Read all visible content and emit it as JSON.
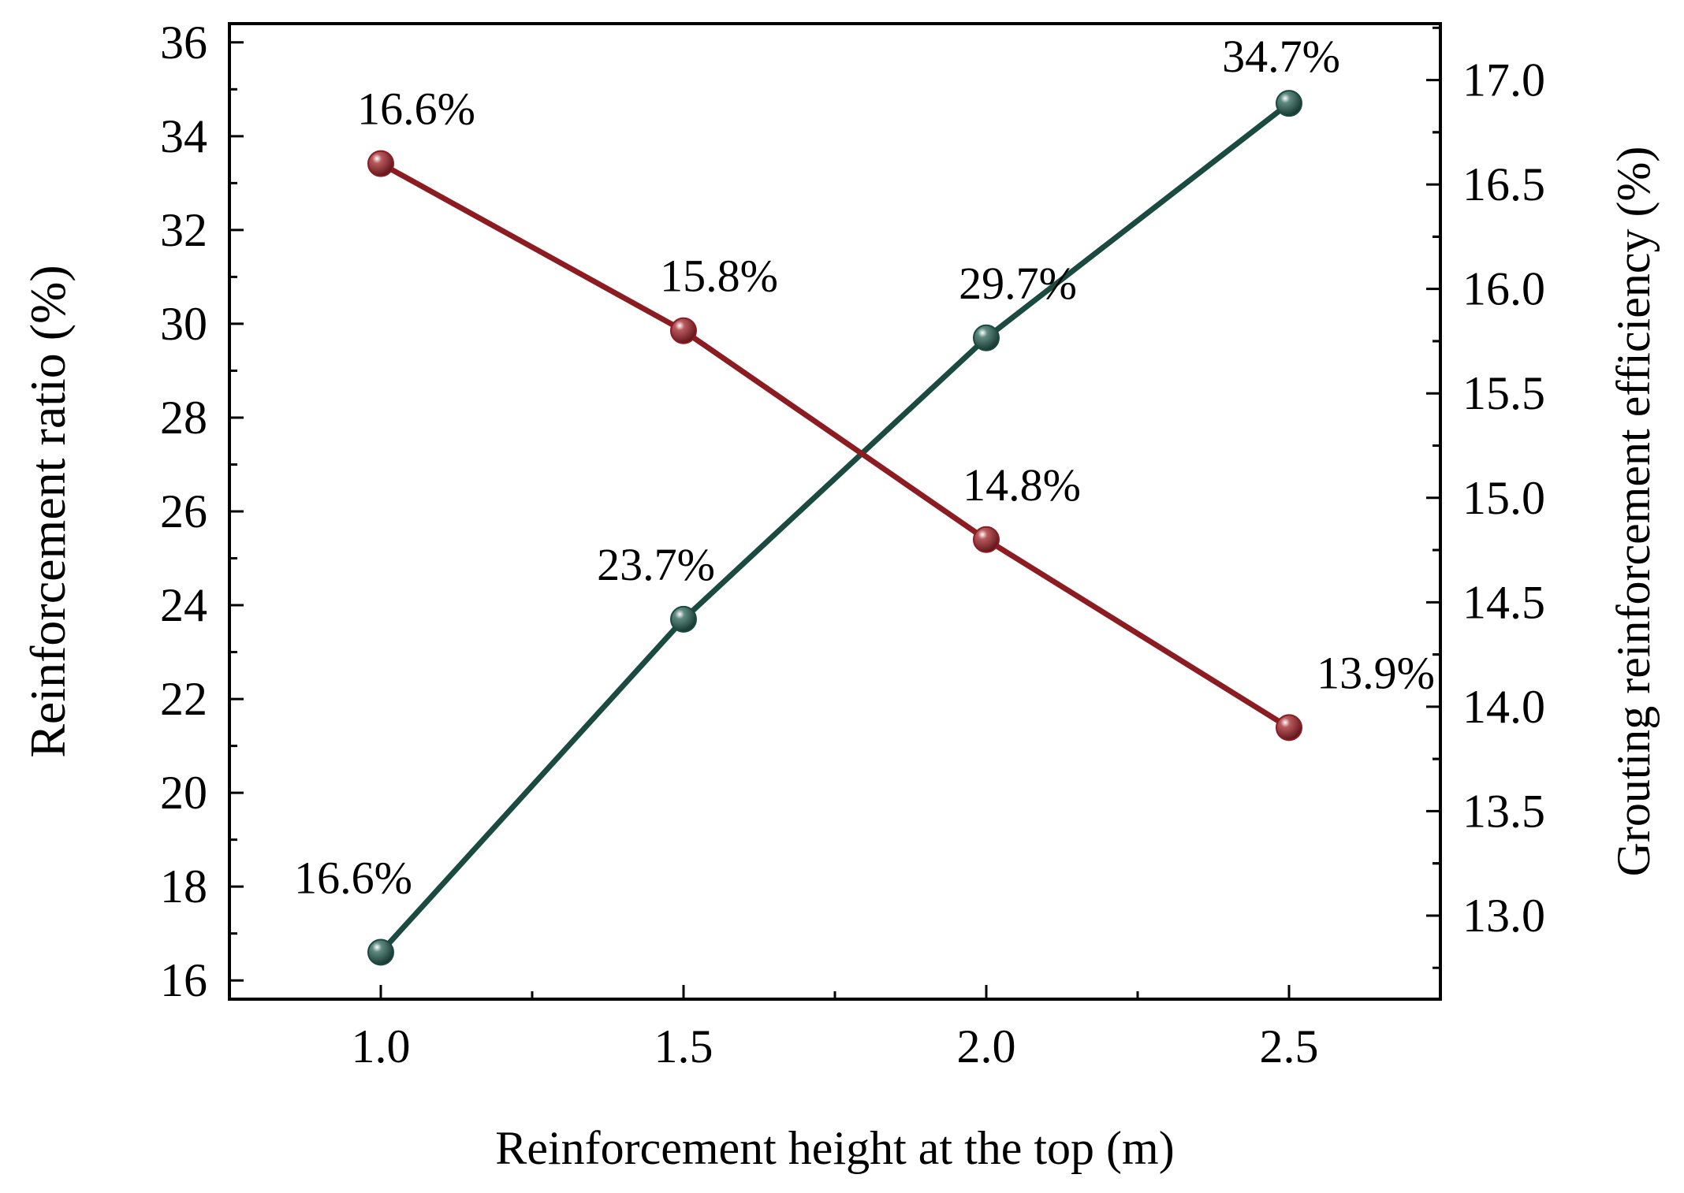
{
  "chart_data": {
    "type": "line",
    "x": [
      1.0,
      1.5,
      2.0,
      2.5
    ],
    "xlim": [
      0.75,
      2.75
    ],
    "x_ticks": [
      "1.0",
      "1.5",
      "2.0",
      "2.5"
    ],
    "xlabel": "Reinforcement height at the top (m)",
    "y_left": {
      "label": "Reinforcement ratio (%)",
      "lim": [
        15.6,
        36.4
      ],
      "ticks": [
        "16",
        "18",
        "20",
        "22",
        "24",
        "26",
        "28",
        "30",
        "32",
        "34",
        "36"
      ]
    },
    "y_right": {
      "label": "Grouting reinforcement efficiency (%)",
      "lim": [
        12.6,
        17.27
      ],
      "ticks": [
        "13.0",
        "13.5",
        "14.0",
        "14.5",
        "15.0",
        "15.5",
        "16.0",
        "16.5",
        "17.0"
      ]
    },
    "series": [
      {
        "name": "Reinforcement ratio",
        "axis": "left",
        "color": "#1b4a40",
        "values": [
          16.6,
          23.7,
          29.7,
          34.7
        ],
        "labels": [
          "16.6%",
          "23.7%",
          "29.7%",
          "34.7%"
        ]
      },
      {
        "name": "Grouting reinforcement efficiency",
        "axis": "right",
        "color": "#8c1c22",
        "values": [
          16.6,
          15.8,
          14.8,
          13.9
        ],
        "labels": [
          "16.6%",
          "15.8%",
          "14.8%",
          "13.9%"
        ]
      }
    ]
  }
}
